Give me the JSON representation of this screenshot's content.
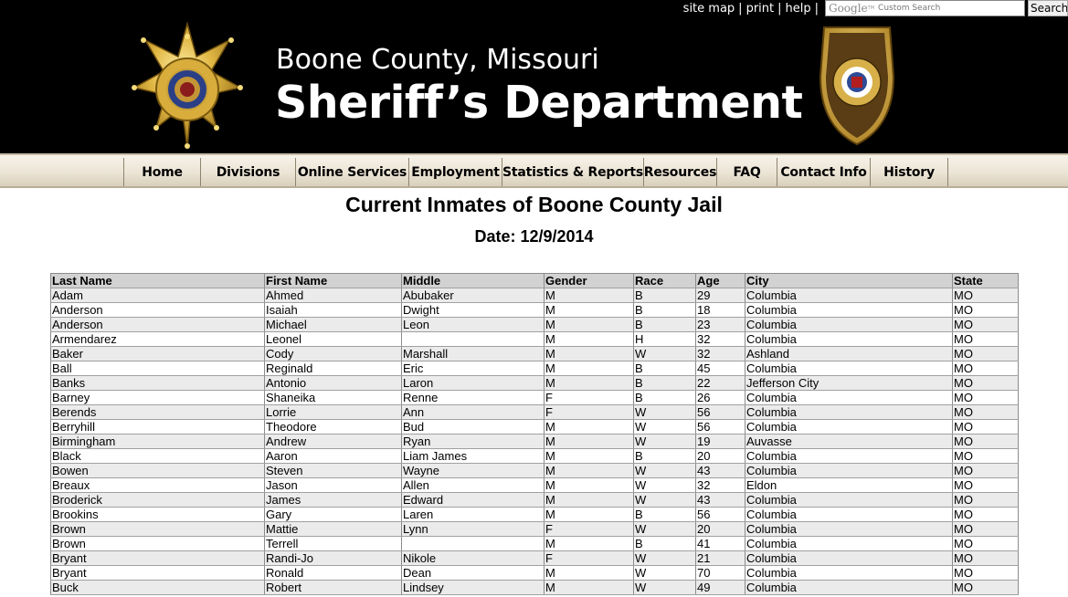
{
  "utility": {
    "site_map": "site map",
    "print": "print",
    "help": "help",
    "sep": "|",
    "search_logo": "Google",
    "search_logo_tm": "TM",
    "search_placeholder": "Custom Search",
    "search_button": "Search"
  },
  "header": {
    "line1": "Boone County, Missouri",
    "line2": "Sheriff’s Department",
    "badge_icon": "sheriff-star-badge-icon",
    "seal_icon": "sheriff-seal-icon"
  },
  "nav": {
    "items": [
      {
        "label": "Home"
      },
      {
        "label": "Divisions"
      },
      {
        "label": "Online Services"
      },
      {
        "label": "Employment"
      },
      {
        "label": "Statistics & Reports"
      },
      {
        "label": "Resources"
      },
      {
        "label": "FAQ"
      },
      {
        "label": "Contact Info"
      },
      {
        "label": "History"
      }
    ]
  },
  "page": {
    "title": "Current Inmates of Boone County Jail",
    "date_label": "Date: 12/9/2014"
  },
  "table": {
    "columns": [
      "Last Name",
      "First Name",
      "Middle",
      "Gender",
      "Race",
      "Age",
      "City",
      "State"
    ],
    "rows": [
      [
        "Adam",
        "Ahmed",
        "Abubaker",
        "M",
        "B",
        "29",
        "Columbia",
        "MO"
      ],
      [
        "Anderson",
        "Isaiah",
        "Dwight",
        "M",
        "B",
        "18",
        "Columbia",
        "MO"
      ],
      [
        "Anderson",
        "Michael",
        "Leon",
        "M",
        "B",
        "23",
        "Columbia",
        "MO"
      ],
      [
        "Armendarez",
        "Leonel",
        "",
        "M",
        "H",
        "32",
        "Columbia",
        "MO"
      ],
      [
        "Baker",
        "Cody",
        "Marshall",
        "M",
        "W",
        "32",
        "Ashland",
        "MO"
      ],
      [
        "Ball",
        "Reginald",
        "Eric",
        "M",
        "B",
        "45",
        "Columbia",
        "MO"
      ],
      [
        "Banks",
        "Antonio",
        "Laron",
        "M",
        "B",
        "22",
        "Jefferson City",
        "MO"
      ],
      [
        "Barney",
        "Shaneika",
        "Renne",
        "F",
        "B",
        "26",
        "Columbia",
        "MO"
      ],
      [
        "Berends",
        "Lorrie",
        "Ann",
        "F",
        "W",
        "56",
        "Columbia",
        "MO"
      ],
      [
        "Berryhill",
        "Theodore",
        "Bud",
        "M",
        "W",
        "56",
        "Columbia",
        "MO"
      ],
      [
        "Birmingham",
        "Andrew",
        "Ryan",
        "M",
        "W",
        "19",
        "Auvasse",
        "MO"
      ],
      [
        "Black",
        "Aaron",
        "Liam James",
        "M",
        "B",
        "20",
        "Columbia",
        "MO"
      ],
      [
        "Bowen",
        "Steven",
        "Wayne",
        "M",
        "W",
        "43",
        "Columbia",
        "MO"
      ],
      [
        "Breaux",
        "Jason",
        "Allen",
        "M",
        "W",
        "32",
        "Eldon",
        "MO"
      ],
      [
        "Broderick",
        "James",
        "Edward",
        "M",
        "W",
        "43",
        "Columbia",
        "MO"
      ],
      [
        "Brookins",
        "Gary",
        "Laren",
        "M",
        "B",
        "56",
        "Columbia",
        "MO"
      ],
      [
        "Brown",
        "Mattie",
        "Lynn",
        "F",
        "W",
        "20",
        "Columbia",
        "MO"
      ],
      [
        "Brown",
        "Terrell",
        "",
        "M",
        "B",
        "41",
        "Columbia",
        "MO"
      ],
      [
        "Bryant",
        "Randi-Jo",
        "Nikole",
        "F",
        "W",
        "21",
        "Columbia",
        "MO"
      ],
      [
        "Bryant",
        "Ronald",
        "Dean",
        "M",
        "W",
        "70",
        "Columbia",
        "MO"
      ],
      [
        "Buck",
        "Robert",
        "Lindsey",
        "M",
        "W",
        "49",
        "Columbia",
        "MO"
      ]
    ]
  }
}
